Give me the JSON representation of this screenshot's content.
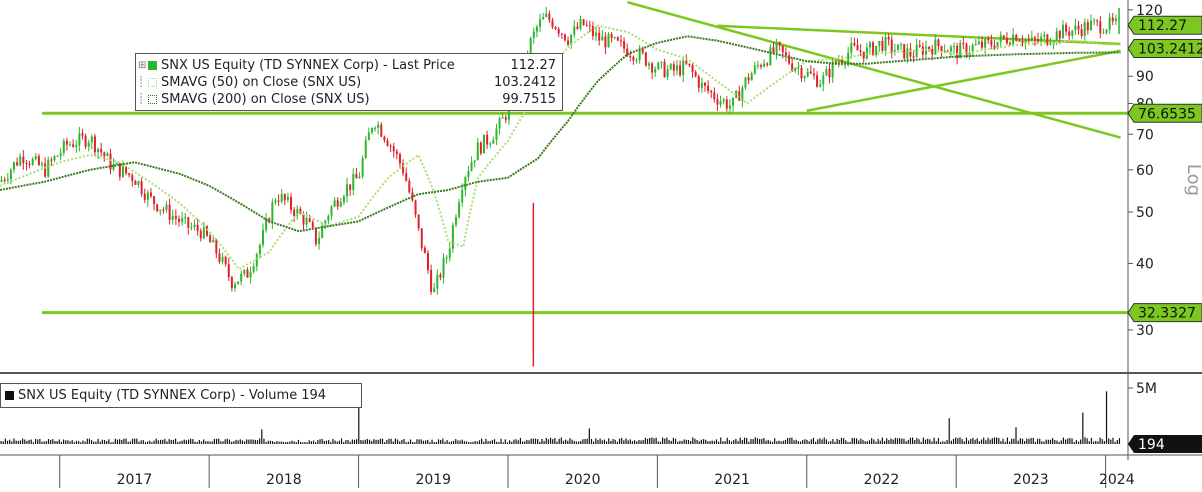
{
  "chart_data": [
    {
      "type": "line",
      "title": "",
      "scale": "log",
      "ylim": [
        25,
        120
      ],
      "y_ticks": [
        "120",
        "90",
        "80",
        "70",
        "60",
        "50",
        "40",
        "30"
      ],
      "x_ticks": [
        "2017",
        "2018",
        "2019",
        "2020",
        "2021",
        "2022",
        "2023",
        "2024"
      ],
      "grid": false,
      "legend_position": "top-left",
      "legend": [
        {
          "label": "SNX US Equity (TD SYNNEX Corp) - Last Price",
          "value": "112.27"
        },
        {
          "label": "SMAVG (50)  on Close (SNX US)",
          "value": "103.2412"
        },
        {
          "label": "SMAVG (200)  on Close (SNX US)",
          "value": "99.7515"
        }
      ],
      "price_series": {
        "name": "SNX US Equity (TD SYNNEX Corp) - Last Price",
        "x": [
          2016.6,
          2016.75,
          2016.9,
          2017.05,
          2017.2,
          2017.35,
          2017.5,
          2017.6,
          2017.72,
          2017.85,
          2017.95,
          2018.05,
          2018.15,
          2018.25,
          2018.35,
          2018.45,
          2018.55,
          2018.65,
          2018.72,
          2018.8,
          2018.9,
          2019.0,
          2019.1,
          2019.2,
          2019.3,
          2019.4,
          2019.5,
          2019.6,
          2019.7,
          2019.8,
          2019.88,
          2019.95,
          2020.0,
          2020.05,
          2020.1,
          2020.15,
          2020.2,
          2020.25,
          2020.3,
          2020.4,
          2020.5,
          2020.6,
          2020.7,
          2020.8,
          2020.9,
          2021.0,
          2021.1,
          2021.2,
          2021.3,
          2021.4,
          2021.5,
          2021.6,
          2021.7,
          2021.8,
          2021.9,
          2022.0,
          2022.1,
          2022.2,
          2022.3,
          2022.4,
          2022.5,
          2022.6,
          2022.7,
          2022.8,
          2022.9,
          2023.0,
          2023.1,
          2023.2,
          2023.3,
          2023.4,
          2023.5,
          2023.6,
          2023.7,
          2023.8,
          2023.9,
          2024.0,
          2024.05,
          2024.1
        ],
        "y": [
          57,
          64,
          60,
          67,
          69,
          61,
          58,
          53,
          50,
          47,
          46,
          42,
          37,
          38,
          44,
          54,
          51,
          48,
          44,
          50,
          55,
          58,
          75,
          68,
          60,
          46,
          35,
          42,
          58,
          66,
          69,
          73,
          78,
          84,
          92,
          104,
          112,
          116,
          114,
          106,
          113,
          106,
          104,
          101,
          98,
          93,
          92,
          94,
          86,
          82,
          79,
          89,
          96,
          101,
          95,
          91,
          88,
          96,
          101,
          100,
          104,
          101,
          99,
          102,
          103,
          100,
          102,
          103,
          105,
          108,
          104,
          106,
          109,
          110,
          112.27,
          112.27,
          112.27,
          112.27
        ]
      },
      "sma50_series": {
        "name": "SMAVG (50)  on Close (SNX US)",
        "x": [
          2016.6,
          2016.8,
          2017.0,
          2017.2,
          2017.4,
          2017.6,
          2017.8,
          2018.0,
          2018.2,
          2018.4,
          2018.6,
          2018.8,
          2019.0,
          2019.2,
          2019.4,
          2019.5,
          2019.6,
          2019.7,
          2019.8,
          2020.0,
          2020.2,
          2020.4,
          2020.6,
          2020.8,
          2021.0,
          2021.2,
          2021.4,
          2021.6,
          2021.8,
          2022.0,
          2022.2,
          2022.4,
          2022.6,
          2022.8,
          2023.0,
          2023.2,
          2023.4,
          2023.6,
          2023.8,
          2024.0,
          2024.1
        ],
        "y": [
          56,
          59,
          62,
          64,
          62,
          57,
          52,
          46,
          39,
          42,
          50,
          47,
          49,
          58,
          64,
          55,
          44,
          43,
          58,
          68,
          84,
          102,
          112,
          109,
          101,
          97,
          88,
          80,
          88,
          96,
          97,
          99,
          100,
          101,
          99,
          101,
          103,
          104,
          105,
          103.2412,
          103.2412
        ]
      },
      "sma200_series": {
        "name": "SMAVG (200)  on Close (SNX US)",
        "x": [
          2016.6,
          2016.9,
          2017.2,
          2017.5,
          2017.8,
          2018.0,
          2018.2,
          2018.4,
          2018.6,
          2018.8,
          2019.0,
          2019.2,
          2019.4,
          2019.6,
          2019.8,
          2020.0,
          2020.2,
          2020.4,
          2020.6,
          2020.8,
          2021.0,
          2021.2,
          2021.4,
          2021.6,
          2021.8,
          2022.0,
          2022.2,
          2022.4,
          2022.6,
          2022.8,
          2023.0,
          2023.2,
          2023.4,
          2023.6,
          2023.8,
          2024.0,
          2024.1
        ],
        "y": [
          55,
          57,
          60,
          62,
          59,
          56,
          52,
          48,
          46,
          47,
          48,
          51,
          54,
          55,
          57,
          58,
          63,
          74,
          88,
          99,
          104,
          107,
          105,
          102,
          99,
          96,
          95,
          95,
          96,
          97,
          98,
          98.5,
          99,
          99.3,
          99.6,
          99.7515,
          99.7515
        ]
      },
      "horizontal_levels": [
        "76.6535",
        "32.3327"
      ],
      "horizontal_level_values": [
        76.6535,
        32.3327
      ],
      "trendlines": [
        {
          "x": [
            2020.8,
            2024.1
          ],
          "y": [
            124,
            69
          ]
        },
        {
          "x": [
            2021.4,
            2024.1
          ],
          "y": [
            112,
            103.5
          ]
        },
        {
          "x": [
            2022.0,
            2024.1
          ],
          "y": [
            77.5,
            100.5
          ]
        }
      ],
      "value_tags": [
        {
          "label": "112.27",
          "value": 112.27
        },
        {
          "label": "103.2412",
          "value": 103.2412
        },
        {
          "label": "76.6535",
          "value": 76.6535
        },
        {
          "label": "32.3327",
          "value": 32.3327
        }
      ],
      "colors": {
        "price_up": "#2db52d",
        "price_down": "#e0202a",
        "sma50": "#a8e070",
        "sma200": "#3a7a20",
        "level_line": "#7cc820",
        "tag_bg": "#7cc820"
      }
    },
    {
      "type": "bar",
      "title": "",
      "legend": [
        {
          "label": "SNX US Equity (TD SYNNEX Corp) - Volume",
          "value": "194"
        }
      ],
      "y_ticks": [
        "5M"
      ],
      "ylim": [
        0,
        5000000
      ],
      "value_tag": "194",
      "spikes": [
        {
          "x": 2019.0,
          "value": 3500000
        },
        {
          "x": 2022.95,
          "value": 2300000
        },
        {
          "x": 2023.85,
          "value": 2800000
        },
        {
          "x": 2024.0,
          "value": 4700000
        },
        {
          "x": 2023.4,
          "value": 1500000
        },
        {
          "x": 2020.55,
          "value": 1400000
        },
        {
          "x": 2018.35,
          "value": 1300000
        }
      ],
      "color": "#111111"
    }
  ]
}
